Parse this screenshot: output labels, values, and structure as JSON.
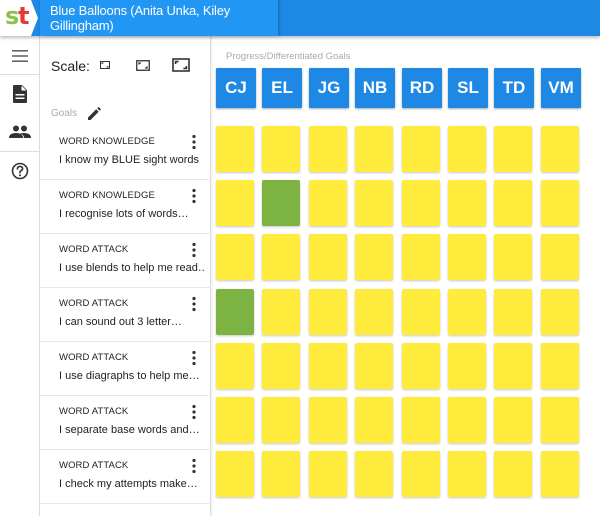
{
  "header": {
    "title": "Blue Balloons (Anita Unka, Kiley Gillingham)"
  },
  "logo": {
    "letters": [
      "s",
      "t"
    ]
  },
  "nav": [
    "menu-icon",
    "document-icon",
    "people-icon",
    "help-icon"
  ],
  "scale": {
    "label": "Scale:",
    "options": [
      "small",
      "medium",
      "large"
    ]
  },
  "goals": {
    "header": "Goals",
    "items": [
      {
        "category": "WORD KNOWLEDGE",
        "text": "I know my BLUE sight words"
      },
      {
        "category": "WORD KNOWLEDGE",
        "text": "I recognise lots of words…"
      },
      {
        "category": "WORD ATTACK",
        "text": "I use blends to help me read…"
      },
      {
        "category": "WORD ATTACK",
        "text": "I can sound out 3 letter…"
      },
      {
        "category": "WORD ATTACK",
        "text": "I use diagraphs to help me…"
      },
      {
        "category": "WORD ATTACK",
        "text": "I separate base words and…"
      },
      {
        "category": "WORD ATTACK",
        "text": "I check my attempts make…"
      }
    ]
  },
  "matrix": {
    "title": "Progress/Differentiated Goals",
    "students": [
      "CJ",
      "EL",
      "JG",
      "NB",
      "RD",
      "SL",
      "TD",
      "VM"
    ],
    "status_colors": {
      "not_started": "#ffeb3b",
      "achieved": "#7cb342"
    },
    "cells": [
      [
        "not_started",
        "not_started",
        "not_started",
        "not_started",
        "not_started",
        "not_started",
        "not_started",
        "not_started"
      ],
      [
        "not_started",
        "achieved",
        "not_started",
        "not_started",
        "not_started",
        "not_started",
        "not_started",
        "not_started"
      ],
      [
        "not_started",
        "not_started",
        "not_started",
        "not_started",
        "not_started",
        "not_started",
        "not_started",
        "not_started"
      ],
      [
        "achieved",
        "not_started",
        "not_started",
        "not_started",
        "not_started",
        "not_started",
        "not_started",
        "not_started"
      ],
      [
        "not_started",
        "not_started",
        "not_started",
        "not_started",
        "not_started",
        "not_started",
        "not_started",
        "not_started"
      ],
      [
        "not_started",
        "not_started",
        "not_started",
        "not_started",
        "not_started",
        "not_started",
        "not_started",
        "not_started"
      ],
      [
        "not_started",
        "not_started",
        "not_started",
        "not_started",
        "not_started",
        "not_started",
        "not_started",
        "not_started"
      ]
    ]
  }
}
